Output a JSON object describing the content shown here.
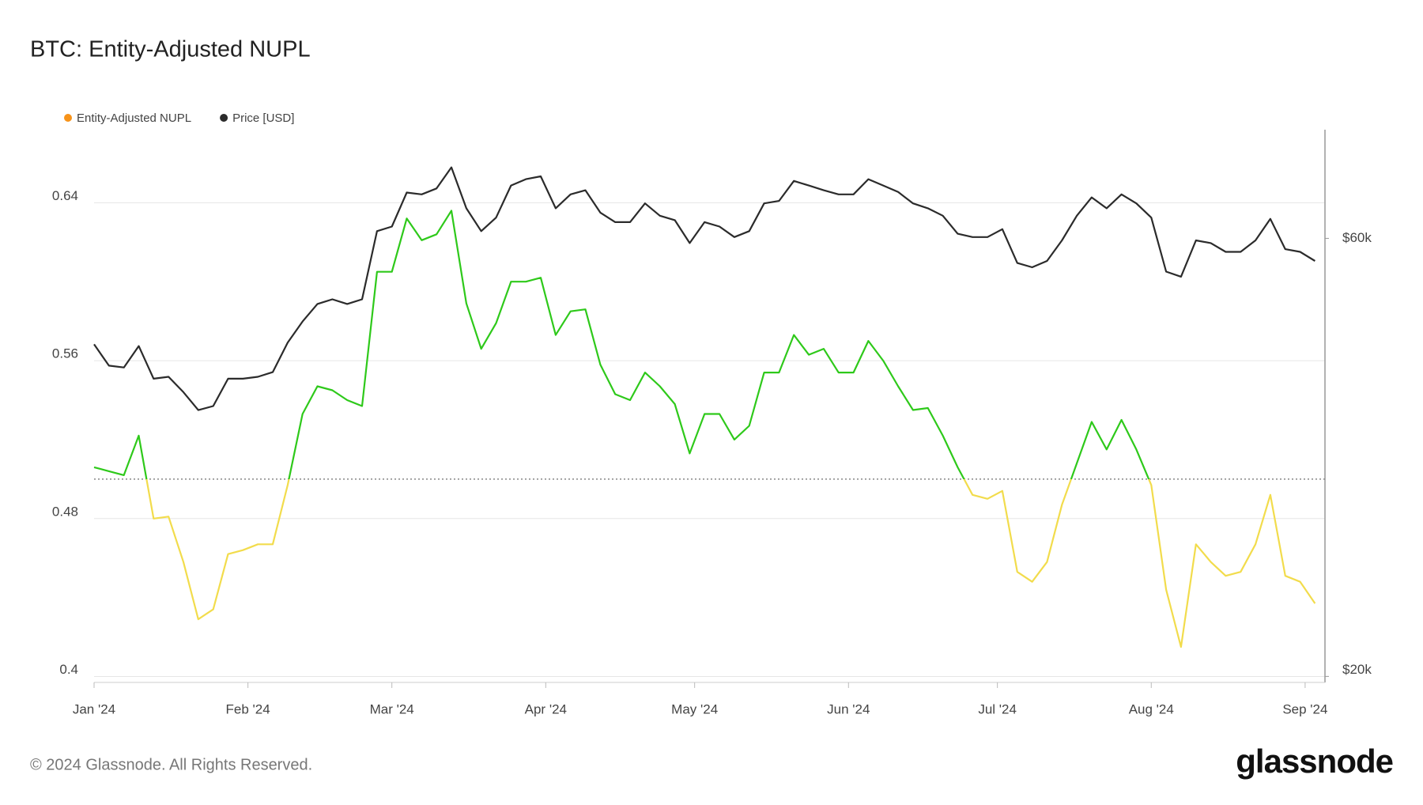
{
  "footer": "© 2024 Glassnode. All Rights Reserved.",
  "logo": "glassnode",
  "chart_data": {
    "type": "line",
    "title": "BTC: Entity-Adjusted NUPL",
    "legend": "top-left",
    "grid": true,
    "threshold": 0.5,
    "x": [
      0,
      3,
      6,
      9,
      12,
      15,
      18,
      21,
      24,
      27,
      30,
      33,
      36,
      39,
      42,
      45,
      48,
      51,
      54,
      57,
      60,
      63,
      66,
      69,
      72,
      75,
      78,
      81,
      84,
      87,
      90,
      93,
      96,
      99,
      102,
      105,
      108,
      111,
      114,
      117,
      120,
      123,
      126,
      129,
      132,
      135,
      138,
      141,
      144,
      147,
      150,
      153,
      156,
      159,
      162,
      165,
      168,
      171,
      174,
      177,
      180,
      183,
      186,
      189,
      192,
      195,
      198,
      201,
      204,
      207,
      210,
      213,
      216,
      219,
      222,
      225,
      228,
      231,
      234,
      237,
      240,
      243,
      246
    ],
    "xlim": [
      0,
      248
    ],
    "xticks": [
      {
        "value": 0,
        "label": "Jan '24"
      },
      {
        "value": 31,
        "label": "Feb '24"
      },
      {
        "value": 60,
        "label": "Mar '24"
      },
      {
        "value": 91,
        "label": "Apr '24"
      },
      {
        "value": 121,
        "label": "May '24"
      },
      {
        "value": 152,
        "label": "Jun '24"
      },
      {
        "value": 182,
        "label": "Jul '24"
      },
      {
        "value": 213,
        "label": "Aug '24"
      },
      {
        "value": 244,
        "label": "Sep '24"
      }
    ],
    "ylim": [
      0.397,
      0.677
    ],
    "yticks": [
      0.4,
      0.48,
      0.56,
      0.64
    ],
    "y2lim": [
      19700,
      78800
    ],
    "y2_scale": "log",
    "y2ticks": [
      {
        "value": 20000,
        "label": "$20k"
      },
      {
        "value": 60000,
        "label": "$60k"
      }
    ],
    "series": [
      {
        "name": "Entity-Adjusted NUPL",
        "color": "#f7931a",
        "above_color": "#2ec91a",
        "below_color": "#f2dc4c",
        "values": [
          0.506,
          0.504,
          0.502,
          0.522,
          0.48,
          0.481,
          0.458,
          0.429,
          0.434,
          0.462,
          0.464,
          0.467,
          0.467,
          0.497,
          0.533,
          0.547,
          0.545,
          0.54,
          0.537,
          0.605,
          0.605,
          0.632,
          0.621,
          0.624,
          0.636,
          0.589,
          0.566,
          0.579,
          0.6,
          0.6,
          0.602,
          0.573,
          0.585,
          0.586,
          0.558,
          0.543,
          0.54,
          0.554,
          0.547,
          0.538,
          0.513,
          0.533,
          0.533,
          0.52,
          0.527,
          0.554,
          0.554,
          0.573,
          0.563,
          0.566,
          0.554,
          0.554,
          0.57,
          0.56,
          0.547,
          0.535,
          0.536,
          0.522,
          0.506,
          0.492,
          0.49,
          0.494,
          0.453,
          0.448,
          0.458,
          0.487,
          0.508,
          0.529,
          0.515,
          0.53,
          0.515,
          0.497,
          0.444,
          0.415,
          0.467,
          0.458,
          0.451,
          0.453,
          0.467,
          0.492,
          0.451,
          0.448,
          0.437
        ]
      },
      {
        "name": "Price [USD]",
        "color": "#2b2b2b",
        "axis": "y2",
        "values": [
          46000,
          43600,
          43400,
          45800,
          42200,
          42400,
          40800,
          39000,
          39400,
          42200,
          42200,
          42400,
          42900,
          46200,
          48700,
          50900,
          51500,
          50900,
          51500,
          61100,
          61800,
          67300,
          67000,
          68000,
          71700,
          64700,
          61100,
          63200,
          68500,
          69600,
          70100,
          64700,
          67000,
          67700,
          64000,
          62500,
          62500,
          65500,
          63500,
          62800,
          59300,
          62500,
          61800,
          60200,
          61100,
          65500,
          65900,
          69300,
          68500,
          67700,
          67000,
          67000,
          69600,
          68500,
          67400,
          65500,
          64700,
          63500,
          60700,
          60200,
          60200,
          61400,
          56400,
          55800,
          56700,
          59700,
          63500,
          66500,
          64700,
          67000,
          65500,
          63200,
          55200,
          54500,
          59700,
          59300,
          58000,
          58000,
          59700,
          63000,
          58400,
          58000,
          56700
        ]
      }
    ]
  }
}
